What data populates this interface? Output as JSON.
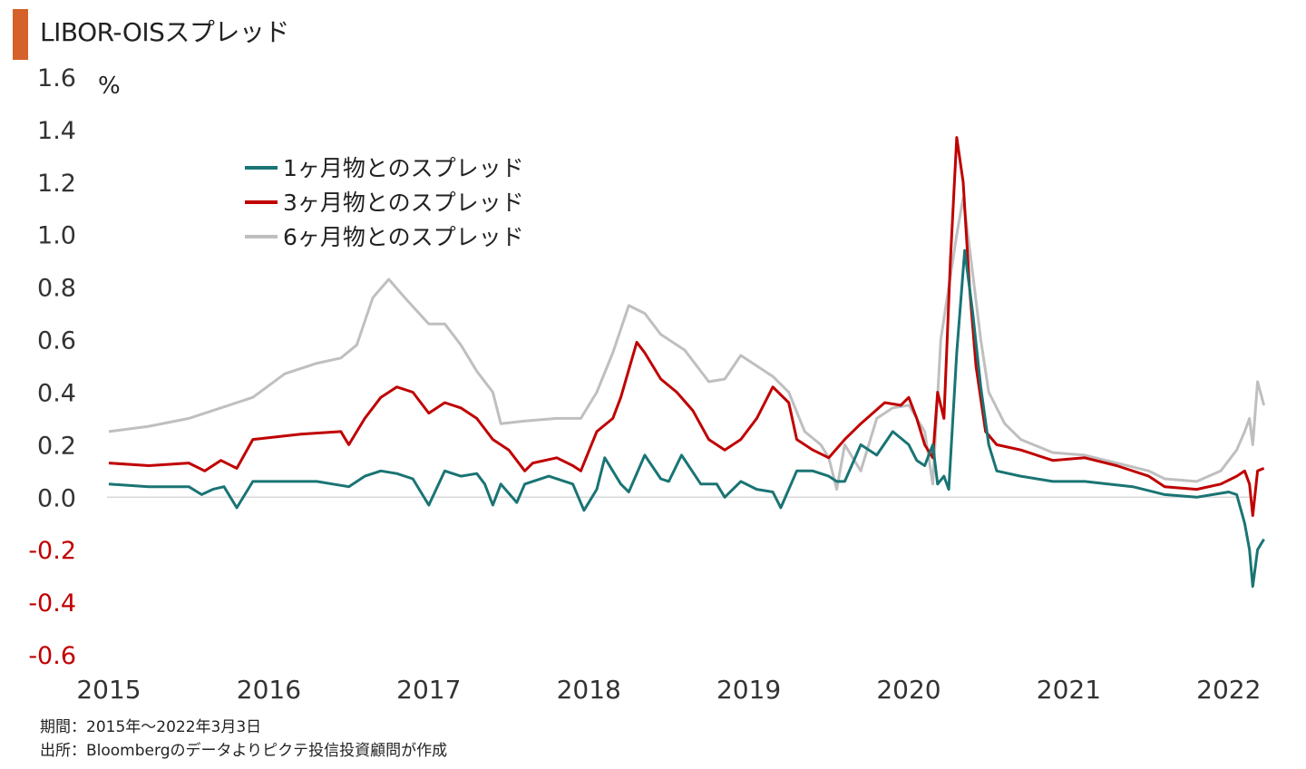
{
  "title": "LIBOR-OISスプレッド",
  "colors": {
    "title_bar": "#d5622a",
    "negative_tick": "#c00000",
    "positive_tick": "#333333",
    "zero_line": "#d9d9d9"
  },
  "notes": {
    "period": "期間：2015年～2022年3月3日",
    "source": "出所：Bloombergのデータよりピクテ投信投資顧問が作成"
  },
  "chart_data": {
    "type": "line",
    "title": "LIBOR-OISスプレッド",
    "xlabel": "",
    "ylabel": "%",
    "ylim": [
      -0.6,
      1.6
    ],
    "xlim": [
      2015.0,
      2022.2
    ],
    "grid": false,
    "legend_position": "top-left",
    "x_ticks": [
      "2015",
      "2016",
      "2017",
      "2018",
      "2019",
      "2020",
      "2021",
      "2022"
    ],
    "y_ticks": [
      "1.6",
      "1.4",
      "1.2",
      "1.0",
      "0.8",
      "0.6",
      "0.4",
      "0.2",
      "0.0",
      "-0.2",
      "-0.4",
      "-0.6"
    ],
    "series": [
      {
        "name": "1ヶ月物とのスプレッド",
        "color": "#1a7474",
        "points": [
          [
            2015.0,
            0.05
          ],
          [
            2015.25,
            0.04
          ],
          [
            2015.5,
            0.04
          ],
          [
            2015.58,
            0.01
          ],
          [
            2015.65,
            0.03
          ],
          [
            2015.72,
            0.04
          ],
          [
            2015.8,
            -0.04
          ],
          [
            2015.9,
            0.06
          ],
          [
            2016.1,
            0.06
          ],
          [
            2016.3,
            0.06
          ],
          [
            2016.4,
            0.05
          ],
          [
            2016.5,
            0.04
          ],
          [
            2016.6,
            0.08
          ],
          [
            2016.7,
            0.1
          ],
          [
            2016.8,
            0.09
          ],
          [
            2016.9,
            0.07
          ],
          [
            2017.0,
            -0.03
          ],
          [
            2017.1,
            0.1
          ],
          [
            2017.2,
            0.08
          ],
          [
            2017.3,
            0.09
          ],
          [
            2017.35,
            0.05
          ],
          [
            2017.4,
            -0.03
          ],
          [
            2017.45,
            0.05
          ],
          [
            2017.55,
            -0.02
          ],
          [
            2017.6,
            0.05
          ],
          [
            2017.75,
            0.08
          ],
          [
            2017.9,
            0.05
          ],
          [
            2017.97,
            -0.05
          ],
          [
            2018.05,
            0.03
          ],
          [
            2018.1,
            0.15
          ],
          [
            2018.2,
            0.05
          ],
          [
            2018.25,
            0.02
          ],
          [
            2018.35,
            0.16
          ],
          [
            2018.45,
            0.07
          ],
          [
            2018.5,
            0.06
          ],
          [
            2018.58,
            0.16
          ],
          [
            2018.7,
            0.05
          ],
          [
            2018.8,
            0.05
          ],
          [
            2018.85,
            0.0
          ],
          [
            2018.95,
            0.06
          ],
          [
            2019.05,
            0.03
          ],
          [
            2019.15,
            0.02
          ],
          [
            2019.2,
            -0.04
          ],
          [
            2019.3,
            0.1
          ],
          [
            2019.4,
            0.1
          ],
          [
            2019.5,
            0.08
          ],
          [
            2019.55,
            0.06
          ],
          [
            2019.6,
            0.06
          ],
          [
            2019.7,
            0.2
          ],
          [
            2019.8,
            0.16
          ],
          [
            2019.9,
            0.25
          ],
          [
            2020.0,
            0.2
          ],
          [
            2020.05,
            0.14
          ],
          [
            2020.1,
            0.12
          ],
          [
            2020.15,
            0.2
          ],
          [
            2020.18,
            0.05
          ],
          [
            2020.22,
            0.08
          ],
          [
            2020.25,
            0.03
          ],
          [
            2020.3,
            0.55
          ],
          [
            2020.35,
            0.94
          ],
          [
            2020.4,
            0.7
          ],
          [
            2020.45,
            0.42
          ],
          [
            2020.5,
            0.2
          ],
          [
            2020.55,
            0.1
          ],
          [
            2020.7,
            0.08
          ],
          [
            2020.9,
            0.06
          ],
          [
            2021.1,
            0.06
          ],
          [
            2021.4,
            0.04
          ],
          [
            2021.6,
            0.01
          ],
          [
            2021.8,
            0.0
          ],
          [
            2021.9,
            0.01
          ],
          [
            2022.0,
            0.02
          ],
          [
            2022.05,
            0.01
          ],
          [
            2022.1,
            -0.1
          ],
          [
            2022.13,
            -0.2
          ],
          [
            2022.15,
            -0.34
          ],
          [
            2022.18,
            -0.2
          ],
          [
            2022.22,
            -0.16
          ]
        ]
      },
      {
        "name": "3ヶ月物とのスプレッド",
        "color": "#c00000",
        "points": [
          [
            2015.0,
            0.13
          ],
          [
            2015.25,
            0.12
          ],
          [
            2015.5,
            0.13
          ],
          [
            2015.6,
            0.1
          ],
          [
            2015.7,
            0.14
          ],
          [
            2015.8,
            0.11
          ],
          [
            2015.9,
            0.22
          ],
          [
            2016.2,
            0.24
          ],
          [
            2016.45,
            0.25
          ],
          [
            2016.5,
            0.2
          ],
          [
            2016.6,
            0.3
          ],
          [
            2016.7,
            0.38
          ],
          [
            2016.8,
            0.42
          ],
          [
            2016.9,
            0.4
          ],
          [
            2017.0,
            0.32
          ],
          [
            2017.1,
            0.36
          ],
          [
            2017.2,
            0.34
          ],
          [
            2017.3,
            0.3
          ],
          [
            2017.4,
            0.22
          ],
          [
            2017.5,
            0.18
          ],
          [
            2017.6,
            0.1
          ],
          [
            2017.65,
            0.13
          ],
          [
            2017.8,
            0.15
          ],
          [
            2017.9,
            0.12
          ],
          [
            2017.95,
            0.1
          ],
          [
            2018.05,
            0.25
          ],
          [
            2018.15,
            0.3
          ],
          [
            2018.2,
            0.38
          ],
          [
            2018.3,
            0.59
          ],
          [
            2018.35,
            0.55
          ],
          [
            2018.45,
            0.45
          ],
          [
            2018.55,
            0.4
          ],
          [
            2018.65,
            0.33
          ],
          [
            2018.75,
            0.22
          ],
          [
            2018.85,
            0.18
          ],
          [
            2018.95,
            0.22
          ],
          [
            2019.05,
            0.3
          ],
          [
            2019.15,
            0.42
          ],
          [
            2019.25,
            0.36
          ],
          [
            2019.3,
            0.22
          ],
          [
            2019.4,
            0.18
          ],
          [
            2019.5,
            0.15
          ],
          [
            2019.6,
            0.22
          ],
          [
            2019.7,
            0.28
          ],
          [
            2019.85,
            0.36
          ],
          [
            2019.95,
            0.35
          ],
          [
            2020.0,
            0.38
          ],
          [
            2020.05,
            0.3
          ],
          [
            2020.1,
            0.2
          ],
          [
            2020.15,
            0.15
          ],
          [
            2020.18,
            0.4
          ],
          [
            2020.22,
            0.3
          ],
          [
            2020.26,
            0.9
          ],
          [
            2020.3,
            1.37
          ],
          [
            2020.34,
            1.2
          ],
          [
            2020.38,
            0.8
          ],
          [
            2020.42,
            0.5
          ],
          [
            2020.48,
            0.25
          ],
          [
            2020.55,
            0.2
          ],
          [
            2020.7,
            0.18
          ],
          [
            2020.9,
            0.14
          ],
          [
            2021.1,
            0.15
          ],
          [
            2021.3,
            0.12
          ],
          [
            2021.5,
            0.08
          ],
          [
            2021.6,
            0.04
          ],
          [
            2021.8,
            0.03
          ],
          [
            2021.95,
            0.05
          ],
          [
            2022.05,
            0.08
          ],
          [
            2022.1,
            0.1
          ],
          [
            2022.13,
            0.05
          ],
          [
            2022.15,
            -0.07
          ],
          [
            2022.18,
            0.1
          ],
          [
            2022.22,
            0.11
          ]
        ]
      },
      {
        "name": "6ヶ月物とのスプレッド",
        "color": "#bfbfbf",
        "points": [
          [
            2015.0,
            0.25
          ],
          [
            2015.25,
            0.27
          ],
          [
            2015.5,
            0.3
          ],
          [
            2015.7,
            0.34
          ],
          [
            2015.9,
            0.38
          ],
          [
            2016.1,
            0.47
          ],
          [
            2016.3,
            0.51
          ],
          [
            2016.45,
            0.53
          ],
          [
            2016.55,
            0.58
          ],
          [
            2016.65,
            0.76
          ],
          [
            2016.75,
            0.83
          ],
          [
            2016.85,
            0.76
          ],
          [
            2017.0,
            0.66
          ],
          [
            2017.1,
            0.66
          ],
          [
            2017.2,
            0.58
          ],
          [
            2017.3,
            0.48
          ],
          [
            2017.4,
            0.4
          ],
          [
            2017.45,
            0.28
          ],
          [
            2017.6,
            0.29
          ],
          [
            2017.8,
            0.3
          ],
          [
            2017.95,
            0.3
          ],
          [
            2018.05,
            0.4
          ],
          [
            2018.15,
            0.55
          ],
          [
            2018.25,
            0.73
          ],
          [
            2018.35,
            0.7
          ],
          [
            2018.45,
            0.62
          ],
          [
            2018.6,
            0.56
          ],
          [
            2018.75,
            0.44
          ],
          [
            2018.85,
            0.45
          ],
          [
            2018.95,
            0.54
          ],
          [
            2019.05,
            0.5
          ],
          [
            2019.15,
            0.46
          ],
          [
            2019.25,
            0.4
          ],
          [
            2019.35,
            0.25
          ],
          [
            2019.45,
            0.2
          ],
          [
            2019.5,
            0.15
          ],
          [
            2019.55,
            0.03
          ],
          [
            2019.6,
            0.2
          ],
          [
            2019.7,
            0.1
          ],
          [
            2019.8,
            0.3
          ],
          [
            2019.9,
            0.34
          ],
          [
            2020.0,
            0.35
          ],
          [
            2020.05,
            0.3
          ],
          [
            2020.1,
            0.25
          ],
          [
            2020.15,
            0.05
          ],
          [
            2020.2,
            0.6
          ],
          [
            2020.25,
            0.8
          ],
          [
            2020.3,
            1.0
          ],
          [
            2020.34,
            1.14
          ],
          [
            2020.38,
            0.95
          ],
          [
            2020.45,
            0.6
          ],
          [
            2020.5,
            0.4
          ],
          [
            2020.6,
            0.28
          ],
          [
            2020.7,
            0.22
          ],
          [
            2020.9,
            0.17
          ],
          [
            2021.1,
            0.16
          ],
          [
            2021.3,
            0.13
          ],
          [
            2021.5,
            0.1
          ],
          [
            2021.6,
            0.07
          ],
          [
            2021.8,
            0.06
          ],
          [
            2021.95,
            0.1
          ],
          [
            2022.05,
            0.18
          ],
          [
            2022.1,
            0.25
          ],
          [
            2022.13,
            0.3
          ],
          [
            2022.15,
            0.2
          ],
          [
            2022.18,
            0.44
          ],
          [
            2022.22,
            0.35
          ]
        ]
      }
    ]
  }
}
